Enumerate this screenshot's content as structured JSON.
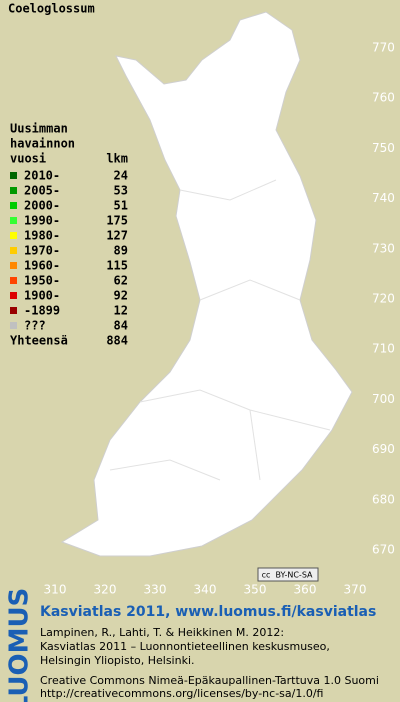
{
  "title": "Coeloglossum",
  "legend": {
    "heading": [
      "Uusimman",
      "havainnon",
      "vuosi"
    ],
    "count_heading": "lkm",
    "items": [
      {
        "label": "2010-",
        "count": 24,
        "color": "#006600"
      },
      {
        "label": "2005-",
        "count": 53,
        "color": "#009900"
      },
      {
        "label": "2000-",
        "count": 51,
        "color": "#00cc00"
      },
      {
        "label": "1990-",
        "count": 175,
        "color": "#33ff33"
      },
      {
        "label": "1980-",
        "count": 127,
        "color": "#ffff00"
      },
      {
        "label": "1970-",
        "count": 89,
        "color": "#ffcc00"
      },
      {
        "label": "1960-",
        "count": 115,
        "color": "#ff8800"
      },
      {
        "label": "1950-",
        "count": 62,
        "color": "#ff4400"
      },
      {
        "label": "1900-",
        "count": 92,
        "color": "#dd0000"
      },
      {
        "label": "-1899",
        "count": 12,
        "color": "#990000"
      },
      {
        "label": "???",
        "count": 84,
        "color": "#c0c0c0"
      }
    ],
    "total_label": "Yhteensä",
    "total": 884
  },
  "grid": {
    "northing": [
      770,
      760,
      750,
      740,
      730,
      720,
      710,
      700,
      690,
      680,
      670
    ],
    "easting": [
      310,
      320,
      330,
      340,
      350,
      360,
      370
    ]
  },
  "badge": {
    "cc": "cc",
    "license": "BY-NC-SA"
  },
  "footer": {
    "brand": "LUOMUS",
    "headline": "Kasviatlas 2011, www.luomus.fi/kasviatlas",
    "citation": [
      "Lampinen, R., Lahti, T. & Heikkinen M. 2012:",
      "Kasviatlas 2011 – Luonnontieteellinen keskusmuseo,",
      "Helsingin Yliopisto, Helsinki."
    ],
    "license": [
      "Creative Commons Nimeä-Epäkaupallinen-Tarttuva 1.0 Suomi",
      "http://creativecommons.org/licenses/by-nc-sa/1.0/fi"
    ]
  }
}
